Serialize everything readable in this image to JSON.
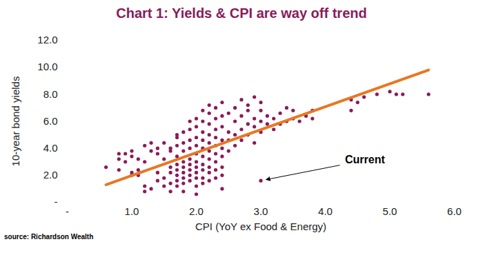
{
  "chart_data": {
    "type": "scatter",
    "title": "Chart 1: Yields & CPI are way off trend",
    "x_label": "CPI (YoY ex Food & Energy)",
    "y_label": "10-year bond yields",
    "source": "source: Richardson Wealth",
    "color": "#8B1A5A",
    "marker": "circle",
    "x": [
      0.6,
      0.8,
      0.8,
      0.8,
      0.9,
      0.9,
      1.0,
      1.0,
      1.0,
      1.0,
      1.1,
      1.1,
      1.1,
      1.2,
      1.2,
      1.2,
      1.2,
      1.3,
      1.3,
      1.3,
      1.4,
      1.4,
      1.4,
      1.4,
      1.5,
      1.5,
      1.5,
      1.5,
      1.6,
      1.6,
      1.6,
      1.6,
      1.6,
      1.6,
      1.7,
      1.7,
      1.7,
      1.7,
      1.7,
      1.7,
      1.7,
      1.7,
      1.7,
      1.8,
      1.8,
      1.8,
      1.8,
      1.8,
      1.8,
      1.8,
      1.8,
      1.8,
      1.9,
      1.9,
      1.9,
      1.9,
      1.9,
      1.9,
      1.9,
      1.9,
      1.9,
      2.0,
      2.0,
      2.0,
      2.0,
      2.0,
      2.0,
      2.0,
      2.0,
      2.0,
      2.0,
      2.0,
      2.1,
      2.1,
      2.1,
      2.1,
      2.1,
      2.1,
      2.1,
      2.1,
      2.1,
      2.1,
      2.2,
      2.2,
      2.2,
      2.2,
      2.2,
      2.2,
      2.2,
      2.2,
      2.2,
      2.2,
      2.3,
      2.3,
      2.3,
      2.3,
      2.3,
      2.3,
      2.3,
      2.3,
      2.3,
      2.4,
      2.4,
      2.4,
      2.4,
      2.4,
      2.4,
      2.4,
      2.4,
      2.4,
      2.5,
      2.5,
      2.5,
      2.5,
      2.6,
      2.6,
      2.6,
      2.6,
      2.7,
      2.7,
      2.7,
      2.7,
      2.8,
      2.8,
      2.8,
      2.8,
      2.9,
      2.9,
      2.9,
      2.9,
      3.0,
      3.0,
      3.0,
      3.0,
      3.0,
      3.1,
      3.1,
      3.2,
      3.2,
      3.3,
      3.3,
      3.4,
      3.4,
      3.5,
      3.5,
      3.6,
      3.7,
      3.8,
      3.8,
      4.4,
      4.4,
      4.5,
      4.6,
      4.8,
      5.0,
      5.1,
      5.2,
      5.6
    ],
    "values": [
      2.6,
      3.2,
      3.6,
      2.4,
      3.0,
      3.6,
      3.4,
      3.8,
      2.2,
      2.0,
      2.4,
      2.0,
      3.2,
      3.0,
      4.2,
      1.2,
      0.8,
      4.4,
      3.8,
      1.0,
      4.0,
      3.6,
      2.2,
      1.6,
      4.4,
      3.2,
      1.8,
      1.2,
      4.0,
      3.8,
      2.6,
      2.2,
      1.4,
      0.8,
      1.6,
      2.0,
      2.4,
      2.8,
      3.4,
      4.2,
      4.8,
      5.0,
      1.2,
      1.4,
      1.8,
      2.2,
      2.6,
      3.0,
      3.8,
      4.4,
      5.2,
      0.8,
      1.6,
      2.0,
      2.4,
      2.8,
      3.2,
      4.0,
      4.6,
      5.4,
      6.0,
      1.2,
      1.8,
      2.2,
      2.6,
      3.0,
      3.6,
      4.2,
      4.8,
      5.6,
      6.2,
      0.6,
      1.4,
      1.8,
      2.4,
      2.8,
      3.4,
      4.0,
      4.6,
      5.2,
      6.0,
      6.8,
      1.6,
      2.2,
      2.6,
      3.2,
      3.8,
      4.4,
      5.0,
      5.8,
      6.6,
      7.2,
      1.8,
      2.4,
      3.0,
      3.6,
      4.2,
      4.8,
      5.4,
      6.2,
      7.0,
      2.0,
      2.6,
      3.4,
      4.0,
      4.6,
      5.6,
      6.4,
      7.4,
      1.0,
      3.8,
      4.6,
      5.2,
      6.6,
      4.2,
      5.0,
      6.0,
      7.0,
      4.6,
      5.4,
      6.4,
      7.6,
      5.0,
      5.8,
      6.8,
      7.2,
      4.4,
      5.6,
      6.2,
      7.8,
      5.2,
      6.0,
      6.8,
      7.4,
      1.6,
      5.8,
      6.4,
      5.4,
      6.2,
      6.6,
      5.8,
      6.0,
      7.0,
      6.2,
      6.8,
      6.0,
      6.4,
      6.2,
      6.8,
      7.6,
      6.8,
      7.4,
      7.8,
      8.0,
      8.2,
      8.0,
      8.0,
      8.0
    ],
    "trend_line": {
      "x": [
        0.6,
        5.6
      ],
      "values": [
        1.3,
        9.8
      ],
      "color": "#E87722"
    },
    "annotations": [
      {
        "text": "Current",
        "x": 3.0,
        "y": 1.6
      }
    ],
    "xlim": [
      0,
      6
    ],
    "xticks": [
      {
        "value": 0,
        "label": "-"
      },
      {
        "value": 1,
        "label": "1.0"
      },
      {
        "value": 2,
        "label": "2.0"
      },
      {
        "value": 3,
        "label": "3.0"
      },
      {
        "value": 4,
        "label": "4.0"
      },
      {
        "value": 5,
        "label": "5.0"
      },
      {
        "value": 6,
        "label": "6.0"
      }
    ],
    "ylim": [
      0,
      12
    ],
    "yticks": [
      {
        "value": 0,
        "label": "-"
      },
      {
        "value": 2,
        "label": "2.0"
      },
      {
        "value": 4,
        "label": "4.0"
      },
      {
        "value": 6,
        "label": "6.0"
      },
      {
        "value": 8,
        "label": "8.0"
      },
      {
        "value": 10,
        "label": "10.0"
      },
      {
        "value": 12,
        "label": "12.0"
      }
    ],
    "grid": false
  }
}
